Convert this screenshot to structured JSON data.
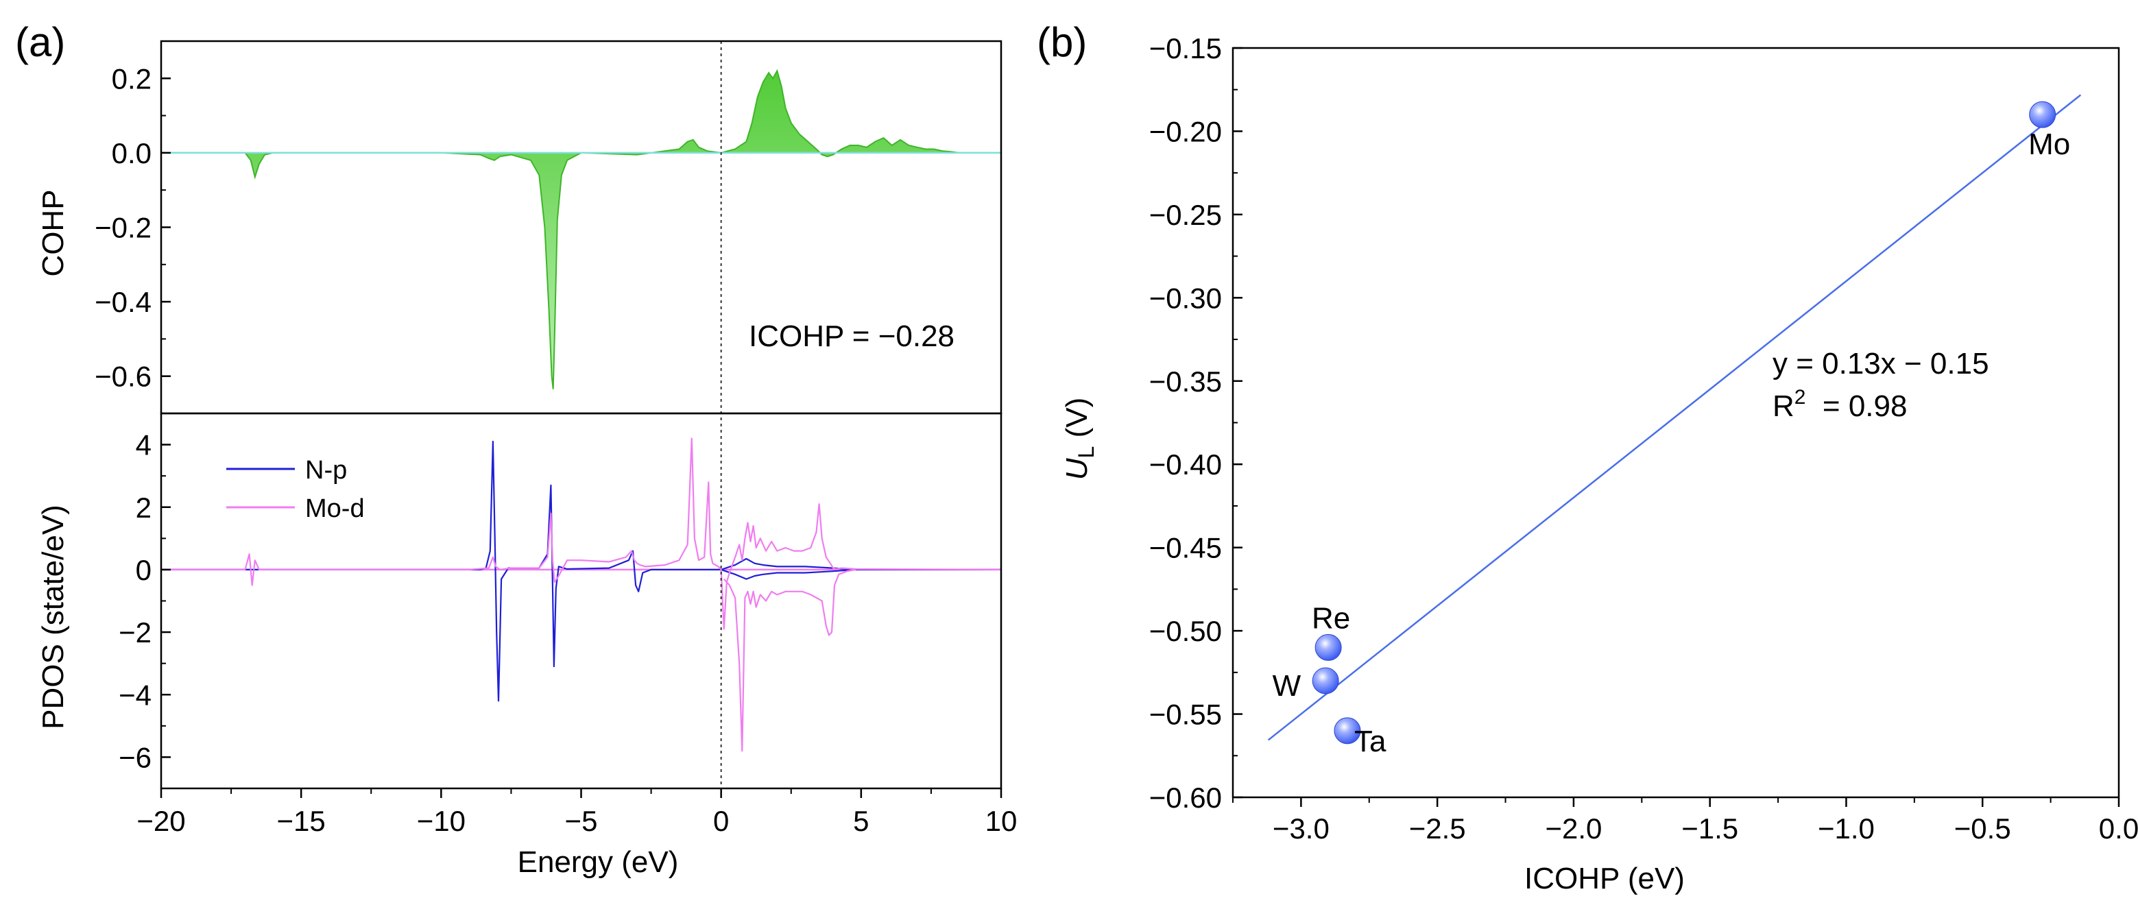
{
  "chart_data": [
    {
      "panel": "(a)",
      "type": "line",
      "subplots": [
        {
          "name": "COHP",
          "ylabel": "COHP",
          "xlim": [
            -20,
            10
          ],
          "ylim": [
            -0.7,
            0.3
          ],
          "yticks": [
            0.2,
            0.0,
            -0.2,
            -0.4,
            -0.6
          ],
          "ytick_labels": [
            "0.2",
            "0.0",
            "−0.2",
            "−0.4",
            "−0.6"
          ],
          "annotation": "ICOHP = −0.28",
          "fermi_level": 0,
          "series": [
            {
              "name": "COHP",
              "color": "#5bd33f",
              "fill": true,
              "x": [
                -20,
                -17.0,
                -16.8,
                -16.65,
                -16.5,
                -16.3,
                -16.0,
                -10.0,
                -8.6,
                -8.3,
                -8.1,
                -7.9,
                -7.5,
                -6.8,
                -6.5,
                -6.3,
                -6.15,
                -6.05,
                -6.0,
                -5.95,
                -5.85,
                -5.7,
                -5.5,
                -5.0,
                -3.0,
                -2.0,
                -1.5,
                -1.2,
                -1.0,
                -0.8,
                -0.5,
                0.0,
                0.5,
                0.9,
                1.1,
                1.3,
                1.5,
                1.7,
                1.85,
                2.0,
                2.15,
                2.3,
                2.5,
                2.8,
                3.1,
                3.4,
                3.6,
                3.8,
                4.0,
                4.3,
                4.6,
                4.9,
                5.2,
                5.5,
                5.8,
                6.1,
                6.4,
                6.7,
                7.0,
                7.3,
                7.6,
                7.9,
                8.2,
                8.5,
                10.0
              ],
              "y": [
                0.0,
                0.0,
                -0.02,
                -0.065,
                -0.03,
                -0.005,
                0.0,
                0.0,
                -0.005,
                -0.015,
                -0.02,
                -0.01,
                -0.005,
                -0.02,
                -0.06,
                -0.2,
                -0.42,
                -0.6,
                -0.635,
                -0.5,
                -0.18,
                -0.06,
                -0.02,
                0.0,
                -0.005,
                0.005,
                0.01,
                0.03,
                0.035,
                0.015,
                0.005,
                0.0,
                0.01,
                0.03,
                0.08,
                0.15,
                0.19,
                0.215,
                0.2,
                0.22,
                0.18,
                0.12,
                0.08,
                0.05,
                0.03,
                0.01,
                -0.005,
                -0.01,
                -0.005,
                0.01,
                0.02,
                0.02,
                0.015,
                0.03,
                0.04,
                0.02,
                0.035,
                0.02,
                0.015,
                0.01,
                0.01,
                0.005,
                0.003,
                0.0,
                0.0
              ]
            }
          ]
        },
        {
          "name": "PDOS",
          "ylabel": "PDOS (state/eV)",
          "xlabel": "Energy (eV)",
          "xlim": [
            -20,
            10
          ],
          "ylim": [
            -7,
            5
          ],
          "yticks": [
            4,
            2,
            0,
            -2,
            -4,
            -6
          ],
          "ytick_labels": [
            "4",
            "2",
            "0",
            "−2",
            "−4",
            "−6"
          ],
          "xticks": [
            -20,
            -15,
            -10,
            -5,
            0,
            5,
            10
          ],
          "xtick_labels": [
            "−20",
            "−15",
            "−10",
            "−5",
            "0",
            "5",
            "10"
          ],
          "legend": [
            "N-p",
            "Mo-d"
          ],
          "legend_position": "top-left",
          "series": [
            {
              "name": "N-p",
              "color": "#1f1fd6",
              "x": [
                -20,
                -8.6,
                -8.4,
                -8.25,
                -8.15,
                -8.08,
                -8.02,
                -7.95,
                -7.85,
                -7.6,
                -6.5,
                -6.2,
                -6.08,
                -6.02,
                -5.97,
                -5.9,
                -5.8,
                -5.5,
                -4.0,
                -3.3,
                -3.15,
                -3.05,
                -2.95,
                -2.8,
                -2.5,
                0.0,
                0.5,
                0.9,
                1.2,
                1.5,
                2.0,
                3.0,
                4.0,
                4.8,
                10.0
              ],
              "y": [
                0.0,
                0.0,
                0.05,
                0.6,
                4.1,
                1.0,
                -2.0,
                -4.2,
                -0.3,
                0.05,
                0.05,
                0.5,
                2.7,
                -0.5,
                -3.1,
                -0.6,
                0.1,
                0.02,
                0.05,
                0.3,
                0.6,
                -0.5,
                -0.7,
                -0.1,
                0.0,
                0.0,
                0.15,
                0.35,
                0.2,
                0.15,
                0.1,
                0.1,
                0.05,
                0.0,
                0.0
              ]
            },
            {
              "name": "N-p (down)",
              "color": "#1f1fd6",
              "x": [
                0.0,
                0.5,
                0.9,
                1.2,
                1.5,
                2.0,
                3.0,
                4.0,
                4.8
              ],
              "y": [
                0.0,
                -0.15,
                -0.3,
                -0.2,
                -0.15,
                -0.1,
                -0.1,
                -0.05,
                0.0
              ]
            },
            {
              "name": "Mo-d",
              "color": "#f07df0",
              "x": [
                -20,
                -17.0,
                -16.85,
                -16.75,
                -16.65,
                -16.5,
                -16.0,
                -9.0,
                -8.3,
                -8.15,
                -8.05,
                -7.9,
                -7.5,
                -6.5,
                -6.2,
                -6.08,
                -6.02,
                -5.95,
                -5.8,
                -5.5,
                -5.0,
                -4.0,
                -3.4,
                -3.2,
                -3.1,
                -3.0,
                -2.9,
                -2.7,
                -2.0,
                -1.5,
                -1.2,
                -1.05,
                -0.95,
                -0.8,
                -0.6,
                -0.45,
                -0.38,
                -0.3,
                -0.1,
                0.0,
                0.1,
                0.2,
                0.3,
                0.5,
                0.65,
                0.75,
                0.85,
                0.95,
                1.05,
                1.15,
                1.25,
                1.4,
                1.6,
                1.8,
                2.0,
                2.3,
                2.6,
                2.9,
                3.2,
                3.4,
                3.5,
                3.6,
                3.75,
                3.9,
                4.0,
                4.1,
                4.3,
                4.8,
                10.0
              ],
              "y": [
                0.0,
                0.0,
                0.5,
                -0.5,
                0.3,
                0.0,
                0.0,
                0.0,
                0.05,
                0.4,
                0.1,
                0.0,
                0.05,
                0.05,
                0.4,
                1.8,
                0.3,
                -0.4,
                -0.2,
                0.3,
                0.3,
                0.25,
                0.4,
                0.6,
                0.3,
                0.2,
                0.15,
                0.1,
                0.15,
                0.3,
                0.8,
                4.2,
                1.0,
                0.3,
                0.4,
                2.8,
                0.5,
                0.2,
                0.1,
                0.0,
                -1.9,
                -0.4,
                -0.1,
                0.4,
                0.8,
                0.3,
                1.0,
                1.5,
                0.9,
                1.4,
                0.7,
                1.0,
                0.6,
                0.9,
                0.6,
                0.7,
                0.6,
                0.6,
                0.7,
                1.2,
                2.1,
                1.0,
                0.4,
                0.2,
                0.05,
                0.02,
                0.05,
                0.02,
                0.0
              ]
            },
            {
              "name": "Mo-d (down)",
              "color": "#f07df0",
              "x": [
                0.1,
                0.3,
                0.5,
                0.65,
                0.75,
                0.85,
                0.95,
                1.05,
                1.15,
                1.25,
                1.4,
                1.6,
                1.8,
                2.0,
                2.3,
                2.6,
                2.9,
                3.2,
                3.4,
                3.6,
                3.75,
                3.85,
                3.95,
                4.05,
                4.2,
                4.5,
                4.8
              ],
              "y": [
                -0.3,
                -0.5,
                -0.9,
                -3.0,
                -5.8,
                -0.9,
                -0.7,
                -1.1,
                -0.7,
                -1.2,
                -0.8,
                -1.0,
                -0.7,
                -0.8,
                -0.7,
                -0.7,
                -0.7,
                -0.8,
                -0.9,
                -1.0,
                -1.8,
                -2.1,
                -2.0,
                -0.5,
                -0.15,
                -0.05,
                0.0
              ]
            }
          ]
        }
      ]
    },
    {
      "panel": "(b)",
      "type": "scatter",
      "xlabel": "ICOHP (eV)",
      "ylabel": "U",
      "ylabel_sub": "L",
      "ylabel_unit": " (V)",
      "xlim": [
        -3.25,
        0.0
      ],
      "ylim": [
        -0.6,
        -0.15
      ],
      "xticks": [
        -3.0,
        -2.5,
        -2.0,
        -1.5,
        -1.0,
        -0.5,
        0.0
      ],
      "xtick_labels": [
        "−3.0",
        "−2.5",
        "−2.0",
        "−1.5",
        "−1.0",
        "−0.5",
        "0.0"
      ],
      "yticks": [
        -0.15,
        -0.2,
        -0.25,
        -0.3,
        -0.35,
        -0.4,
        -0.45,
        -0.5,
        -0.55,
        -0.6
      ],
      "ytick_labels": [
        "−0.15",
        "−0.20",
        "−0.25",
        "−0.30",
        "−0.35",
        "−0.40",
        "−0.45",
        "−0.50",
        "−0.55",
        "−0.60"
      ],
      "points": [
        {
          "label": "Mo",
          "x": -0.28,
          "y": -0.19
        },
        {
          "label": "Re",
          "x": -2.9,
          "y": -0.51
        },
        {
          "label": "W",
          "x": -2.91,
          "y": -0.53
        },
        {
          "label": "Ta",
          "x": -2.83,
          "y": -0.56
        }
      ],
      "fit_line": {
        "x": [
          -3.12,
          -0.14
        ],
        "y": [
          -0.5656,
          -0.1782
        ],
        "color": "#4a6fe8"
      },
      "equation": "y = 0.13x − 0.15",
      "r2_label": "R",
      "r2_sup": "2",
      "r2_value": "  = 0.98",
      "point_color": "#5a78ff"
    }
  ]
}
